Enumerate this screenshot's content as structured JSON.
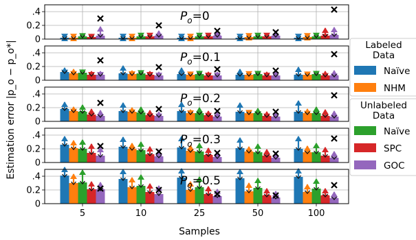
{
  "chart_data": {
    "type": "bar",
    "xlabel": "Samples",
    "ylabel": "Estimation error |p_o − p_o*|",
    "categories": [
      "5",
      "10",
      "25",
      "50",
      "100"
    ],
    "ylim": [
      0,
      0.5
    ],
    "yticks": [
      {
        "value": 0,
        "label": "0"
      },
      {
        "value": 0.2,
        "label": "0.2"
      },
      {
        "value": 0.4,
        "label": ".4"
      }
    ],
    "grid": true,
    "legend_placement": "right",
    "legend_groups": [
      {
        "title_line1": "Labeled",
        "title_line2": "Data",
        "entries": [
          {
            "label": "Naïve",
            "color": "#1f77b4"
          },
          {
            "label": "NHM",
            "color": "#ff7f0e"
          }
        ]
      },
      {
        "title_line1": "Unlabeled",
        "title_line2": "Data",
        "entries": [
          {
            "label": "Naïve",
            "color": "#2ca02c"
          },
          {
            "label": "SPC",
            "color": "#d62728"
          },
          {
            "label": "GOC",
            "color": "#9467bd"
          }
        ]
      }
    ],
    "series_colors": [
      "#1f77b4",
      "#ff7f0e",
      "#2ca02c",
      "#d62728",
      "#9467bd"
    ],
    "panels": [
      {
        "title": "P",
        "subscript": "o",
        "value": "=0",
        "bars": [
          [
            0.02,
            0.02,
            0.04,
            0.03,
            0.05
          ],
          [
            0.02,
            0.02,
            0.04,
            0.04,
            0.05
          ],
          [
            0.02,
            0.02,
            0.04,
            0.04,
            0.05
          ],
          [
            0.02,
            0.03,
            0.04,
            0.04,
            0.05
          ],
          [
            0.02,
            0.03,
            0.04,
            0.05,
            0.06
          ]
        ],
        "err": [
          [
            0.04,
            0.04,
            0.08,
            0.07,
            0.18
          ],
          [
            0.04,
            0.04,
            0.07,
            0.07,
            0.12
          ],
          [
            0.04,
            0.04,
            0.07,
            0.07,
            0.12
          ],
          [
            0.04,
            0.05,
            0.07,
            0.07,
            0.12
          ],
          [
            0.04,
            0.05,
            0.07,
            0.16,
            0.17
          ]
        ],
        "outliers": [
          0.3,
          0.2,
          0.12,
          0.1,
          0.43
        ]
      },
      {
        "title": "P",
        "subscript": "o",
        "value": "=0.1",
        "bars": [
          [
            0.12,
            0.1,
            0.11,
            0.08,
            0.08
          ],
          [
            0.1,
            0.09,
            0.1,
            0.08,
            0.07
          ],
          [
            0.09,
            0.08,
            0.09,
            0.07,
            0.07
          ],
          [
            0.08,
            0.08,
            0.09,
            0.07,
            0.07
          ],
          [
            0.08,
            0.08,
            0.09,
            0.07,
            0.07
          ]
        ],
        "err": [
          [
            0.18,
            0.16,
            0.15,
            0.13,
            0.13
          ],
          [
            0.21,
            0.14,
            0.14,
            0.13,
            0.12
          ],
          [
            0.18,
            0.12,
            0.13,
            0.12,
            0.12
          ],
          [
            0.16,
            0.11,
            0.13,
            0.12,
            0.12
          ],
          [
            0.19,
            0.12,
            0.13,
            0.13,
            0.14
          ]
        ],
        "outliers": [
          0.29,
          0.19,
          0.16,
          0.14,
          0.38
        ]
      },
      {
        "title": "P",
        "subscript": "o",
        "value": "=0.2",
        "bars": [
          [
            0.18,
            0.15,
            0.14,
            0.1,
            0.08
          ],
          [
            0.15,
            0.14,
            0.13,
            0.09,
            0.08
          ],
          [
            0.15,
            0.12,
            0.12,
            0.09,
            0.07
          ],
          [
            0.14,
            0.12,
            0.12,
            0.08,
            0.07
          ],
          [
            0.14,
            0.12,
            0.12,
            0.08,
            0.07
          ]
        ],
        "err": [
          [
            0.28,
            0.21,
            0.24,
            0.18,
            0.16
          ],
          [
            0.27,
            0.2,
            0.21,
            0.16,
            0.14
          ],
          [
            0.28,
            0.17,
            0.2,
            0.15,
            0.13
          ],
          [
            0.27,
            0.16,
            0.19,
            0.14,
            0.12
          ],
          [
            0.3,
            0.18,
            0.21,
            0.17,
            0.15
          ]
        ],
        "outliers": [
          0.27,
          0.18,
          0.15,
          0.14,
          0.38
        ]
      },
      {
        "title": "P",
        "subscript": "o",
        "value": "=0.3",
        "bars": [
          [
            0.26,
            0.21,
            0.2,
            0.14,
            0.1
          ],
          [
            0.23,
            0.2,
            0.18,
            0.12,
            0.09
          ],
          [
            0.22,
            0.17,
            0.16,
            0.11,
            0.08
          ],
          [
            0.21,
            0.16,
            0.15,
            0.1,
            0.07
          ],
          [
            0.2,
            0.15,
            0.15,
            0.1,
            0.07
          ]
        ],
        "err": [
          [
            0.38,
            0.32,
            0.33,
            0.27,
            0.22
          ],
          [
            0.37,
            0.28,
            0.3,
            0.23,
            0.18
          ],
          [
            0.38,
            0.25,
            0.28,
            0.21,
            0.16
          ],
          [
            0.36,
            0.23,
            0.27,
            0.19,
            0.15
          ],
          [
            0.38,
            0.24,
            0.28,
            0.22,
            0.16
          ]
        ],
        "outliers": [
          0.24,
          0.16,
          0.14,
          0.13,
          0.35
        ]
      },
      {
        "title": "P",
        "subscript": "o",
        "value": "=0.5",
        "bars": [
          [
            0.41,
            0.3,
            0.31,
            0.21,
            0.21
          ],
          [
            0.36,
            0.24,
            0.26,
            0.17,
            0.14
          ],
          [
            0.38,
            0.2,
            0.24,
            0.14,
            0.11
          ],
          [
            0.37,
            0.18,
            0.23,
            0.12,
            0.09
          ],
          [
            0.39,
            0.17,
            0.22,
            0.12,
            0.08
          ]
        ],
        "err": [
          [
            0.53,
            0.43,
            0.49,
            0.32,
            0.31
          ],
          [
            0.5,
            0.38,
            0.42,
            0.29,
            0.26
          ],
          [
            0.51,
            0.32,
            0.39,
            0.25,
            0.21
          ],
          [
            0.5,
            0.3,
            0.37,
            0.22,
            0.18
          ],
          [
            0.51,
            0.28,
            0.36,
            0.22,
            0.17
          ]
        ],
        "outliers": [
          0.22,
          0.2,
          0.14,
          0.12,
          0.27
        ]
      }
    ]
  }
}
